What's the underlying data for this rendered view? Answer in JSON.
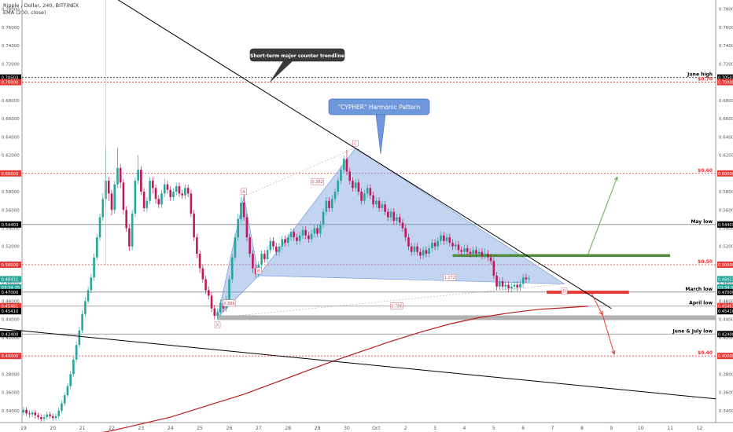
{
  "header": {
    "symbol_line": "Ripple / Dollar, 240, BITFINEX",
    "indicator_line": "EMA (200, close)"
  },
  "colors": {
    "up": "#26a69a",
    "down": "#c2185b",
    "ema": "#b71c1c",
    "pattern_fill": "#7b9fe0",
    "level_red": "#e53935",
    "level_grey": "#888888",
    "support_green": "#4e8c3a",
    "trend": "#000000",
    "callout_dark": "#3a3a3a",
    "callout_blue": "#6f97dc"
  },
  "chart_data": {
    "type": "candlestick",
    "title": "Ripple / Dollar, 240, BITFINEX",
    "xlabel": "",
    "ylabel": "",
    "ylim": [
      0.327,
      0.79
    ],
    "grid": false,
    "x_ticks": [
      {
        "i": 0,
        "label": "19"
      },
      {
        "i": 10,
        "label": "20"
      },
      {
        "i": 20,
        "label": "21"
      },
      {
        "i": 30,
        "label": "22"
      },
      {
        "i": 40,
        "label": "23"
      },
      {
        "i": 50,
        "label": "24"
      },
      {
        "i": 60,
        "label": "25"
      },
      {
        "i": 70,
        "label": "26"
      },
      {
        "i": 80,
        "label": "27"
      },
      {
        "i": 90,
        "label": "28"
      },
      {
        "i": 100,
        "label": "29"
      },
      {
        "i": 110,
        "label": "30"
      },
      {
        "i": 120,
        "label": "Oct"
      },
      {
        "i": 130,
        "label": "2"
      },
      {
        "i": 140,
        "label": "3"
      },
      {
        "i": 150,
        "label": "4"
      },
      {
        "i": 160,
        "label": "5"
      },
      {
        "i": 170,
        "label": "6"
      },
      {
        "i": 180,
        "label": "7"
      },
      {
        "i": 190,
        "label": "8"
      },
      {
        "i": 200,
        "label": "9"
      },
      {
        "i": 210,
        "label": "10"
      },
      {
        "i": 220,
        "label": "11"
      },
      {
        "i": 230,
        "label": "12"
      }
    ],
    "y_ticks": [
      "0.34000",
      "0.36000",
      "0.38000",
      "0.40000",
      "0.42000",
      "0.44000",
      "0.46000",
      "0.48000",
      "0.50000",
      "0.52000",
      "0.54000",
      "0.56000",
      "0.58000",
      "0.60000",
      "0.62000",
      "0.64000",
      "0.66000",
      "0.68000",
      "0.70000",
      "0.72000",
      "0.74000",
      "0.76000",
      "0.78000"
    ],
    "price_badges": [
      {
        "value": 0.70503,
        "label": "0.70503",
        "color": "#000000"
      },
      {
        "value": 0.7,
        "label": "0.70000",
        "color": "#e53935"
      },
      {
        "value": 0.6,
        "label": "0.60000",
        "color": "#e53935"
      },
      {
        "value": 0.54403,
        "label": "0.54403",
        "color": "#000000"
      },
      {
        "value": 0.5,
        "label": "0.50000",
        "color": "#e53935"
      },
      {
        "value": 0.48411,
        "label": "0.48411",
        "color": "#26a69a"
      },
      {
        "value": 0.475,
        "label": "03:34:35",
        "color": "#26a69a"
      },
      {
        "value": 0.47,
        "label": "0.47000",
        "color": "#000000"
      },
      {
        "value": 0.45461,
        "label": "0.45461",
        "color": "#e53935"
      },
      {
        "value": 0.449,
        "label": "0.45410",
        "color": "#000000"
      },
      {
        "value": 0.424,
        "label": "0.42400",
        "color": "#000000"
      },
      {
        "value": 0.4,
        "label": "0.40000",
        "color": "#e53935"
      }
    ],
    "levels": [
      {
        "value": 0.70503,
        "label": "June high",
        "color": "#000000",
        "dash": "2,2"
      },
      {
        "value": 0.7,
        "label": "$0.70",
        "color": "#e53935",
        "dash": "2,2"
      },
      {
        "value": 0.6,
        "label": "$0.60",
        "color": "#e53935",
        "dash": "2,2"
      },
      {
        "value": 0.54403,
        "label": "May low",
        "color": "#888888",
        "dash": ""
      },
      {
        "value": 0.5,
        "label": "$0.50",
        "color": "#e53935",
        "dash": "2,2"
      },
      {
        "value": 0.47,
        "label": "March low",
        "color": "#888888",
        "dash": ""
      },
      {
        "value": 0.45461,
        "label": "April low",
        "color": "#888888",
        "dash": ""
      },
      {
        "value": 0.424,
        "label": "June & July low",
        "color": "#888888",
        "dash": ""
      },
      {
        "value": 0.4,
        "label": "$0.40",
        "color": "#e53935",
        "dash": "2,2"
      }
    ],
    "annotations": {
      "trendline_callout": "Short-term major counter trendline",
      "pattern_callout": "\"CYPHER\" Harmonic Pattern",
      "points": [
        {
          "label": "X",
          "i": 66,
          "v": 0.442
        },
        {
          "label": "A",
          "i": 75,
          "v": 0.575
        },
        {
          "label": "B",
          "i": 80,
          "v": 0.488
        },
        {
          "label": "C",
          "i": 113,
          "v": 0.628
        },
        {
          "label": "D",
          "i": 184,
          "v": 0.479
        }
      ],
      "ratios": [
        {
          "label": "0.382",
          "i": 100,
          "v": 0.591
        },
        {
          "label": "0.886",
          "i": 70,
          "v": 0.458
        },
        {
          "label": "0.786",
          "i": 127,
          "v": 0.455
        },
        {
          "label": "1.272",
          "i": 145,
          "v": 0.486
        }
      ]
    },
    "candles": [
      [
        0.338,
        0.341,
        0.335,
        0.344
      ],
      [
        0.341,
        0.337,
        0.334,
        0.344
      ],
      [
        0.337,
        0.336,
        0.332,
        0.34
      ],
      [
        0.336,
        0.338,
        0.333,
        0.341
      ],
      [
        0.338,
        0.335,
        0.331,
        0.341
      ],
      [
        0.335,
        0.333,
        0.33,
        0.338
      ],
      [
        0.333,
        0.331,
        0.328,
        0.336
      ],
      [
        0.331,
        0.333,
        0.328,
        0.336
      ],
      [
        0.333,
        0.336,
        0.33,
        0.339
      ],
      [
        0.336,
        0.334,
        0.331,
        0.339
      ],
      [
        0.334,
        0.332,
        0.329,
        0.337
      ],
      [
        0.332,
        0.334,
        0.329,
        0.337
      ],
      [
        0.334,
        0.34,
        0.331,
        0.343
      ],
      [
        0.34,
        0.348,
        0.337,
        0.351
      ],
      [
        0.348,
        0.357,
        0.345,
        0.36
      ],
      [
        0.357,
        0.367,
        0.354,
        0.37
      ],
      [
        0.367,
        0.38,
        0.364,
        0.383
      ],
      [
        0.38,
        0.396,
        0.377,
        0.399
      ],
      [
        0.396,
        0.412,
        0.393,
        0.416
      ],
      [
        0.412,
        0.428,
        0.409,
        0.432
      ],
      [
        0.428,
        0.446,
        0.425,
        0.45
      ],
      [
        0.446,
        0.46,
        0.443,
        0.464
      ],
      [
        0.46,
        0.472,
        0.457,
        0.476
      ],
      [
        0.472,
        0.486,
        0.469,
        0.49
      ],
      [
        0.486,
        0.508,
        0.483,
        0.512
      ],
      [
        0.508,
        0.53,
        0.505,
        0.534
      ],
      [
        0.53,
        0.552,
        0.526,
        0.556
      ],
      [
        0.552,
        0.572,
        0.548,
        0.578
      ],
      [
        0.572,
        0.592,
        0.566,
        0.628
      ],
      [
        0.592,
        0.578,
        0.57,
        0.596
      ],
      [
        0.578,
        0.56,
        0.554,
        0.582
      ],
      [
        0.56,
        0.588,
        0.556,
        0.592
      ],
      [
        0.588,
        0.606,
        0.584,
        0.628
      ],
      [
        0.606,
        0.59,
        0.584,
        0.61
      ],
      [
        0.59,
        0.56,
        0.555,
        0.594
      ],
      [
        0.56,
        0.54,
        0.536,
        0.564
      ],
      [
        0.54,
        0.52,
        0.515,
        0.544
      ],
      [
        0.52,
        0.556,
        0.516,
        0.56
      ],
      [
        0.556,
        0.592,
        0.552,
        0.596
      ],
      [
        0.592,
        0.604,
        0.588,
        0.62
      ],
      [
        0.604,
        0.58,
        0.576,
        0.608
      ],
      [
        0.58,
        0.562,
        0.558,
        0.584
      ],
      [
        0.562,
        0.57,
        0.558,
        0.574
      ],
      [
        0.57,
        0.592,
        0.566,
        0.596
      ],
      [
        0.592,
        0.584,
        0.578,
        0.596
      ],
      [
        0.584,
        0.572,
        0.567,
        0.588
      ],
      [
        0.572,
        0.566,
        0.562,
        0.576
      ],
      [
        0.566,
        0.578,
        0.562,
        0.582
      ],
      [
        0.578,
        0.588,
        0.574,
        0.594
      ],
      [
        0.588,
        0.582,
        0.578,
        0.592
      ],
      [
        0.582,
        0.574,
        0.57,
        0.586
      ],
      [
        0.574,
        0.58,
        0.57,
        0.584
      ],
      [
        0.58,
        0.586,
        0.576,
        0.59
      ],
      [
        0.586,
        0.578,
        0.574,
        0.59
      ],
      [
        0.578,
        0.576,
        0.572,
        0.582
      ],
      [
        0.576,
        0.584,
        0.572,
        0.588
      ],
      [
        0.584,
        0.578,
        0.574,
        0.588
      ],
      [
        0.578,
        0.556,
        0.552,
        0.582
      ],
      [
        0.556,
        0.53,
        0.526,
        0.56
      ],
      [
        0.53,
        0.512,
        0.507,
        0.534
      ],
      [
        0.512,
        0.496,
        0.491,
        0.516
      ],
      [
        0.496,
        0.484,
        0.48,
        0.5
      ],
      [
        0.484,
        0.472,
        0.468,
        0.488
      ],
      [
        0.472,
        0.466,
        0.462,
        0.476
      ],
      [
        0.466,
        0.452,
        0.448,
        0.47
      ],
      [
        0.452,
        0.444,
        0.44,
        0.456
      ],
      [
        0.444,
        0.448,
        0.44,
        0.452
      ],
      [
        0.448,
        0.458,
        0.444,
        0.462
      ],
      [
        0.458,
        0.452,
        0.448,
        0.462
      ],
      [
        0.452,
        0.462,
        0.448,
        0.466
      ],
      [
        0.462,
        0.484,
        0.458,
        0.488
      ],
      [
        0.484,
        0.508,
        0.48,
        0.512
      ],
      [
        0.508,
        0.53,
        0.504,
        0.534
      ],
      [
        0.53,
        0.55,
        0.526,
        0.556
      ],
      [
        0.55,
        0.568,
        0.546,
        0.574
      ],
      [
        0.568,
        0.552,
        0.548,
        0.578
      ],
      [
        0.552,
        0.53,
        0.526,
        0.556
      ],
      [
        0.53,
        0.512,
        0.508,
        0.534
      ],
      [
        0.512,
        0.496,
        0.491,
        0.516
      ],
      [
        0.496,
        0.49,
        0.486,
        0.5
      ],
      [
        0.49,
        0.5,
        0.486,
        0.504
      ],
      [
        0.5,
        0.512,
        0.496,
        0.516
      ],
      [
        0.512,
        0.506,
        0.502,
        0.516
      ],
      [
        0.506,
        0.516,
        0.502,
        0.52
      ],
      [
        0.516,
        0.526,
        0.512,
        0.53
      ],
      [
        0.526,
        0.52,
        0.516,
        0.53
      ],
      [
        0.52,
        0.514,
        0.51,
        0.524
      ],
      [
        0.514,
        0.52,
        0.51,
        0.524
      ],
      [
        0.52,
        0.528,
        0.516,
        0.532
      ],
      [
        0.528,
        0.524,
        0.52,
        0.532
      ],
      [
        0.524,
        0.53,
        0.52,
        0.534
      ],
      [
        0.53,
        0.536,
        0.526,
        0.54
      ],
      [
        0.536,
        0.53,
        0.526,
        0.54
      ],
      [
        0.53,
        0.526,
        0.522,
        0.534
      ],
      [
        0.526,
        0.532,
        0.522,
        0.536
      ],
      [
        0.532,
        0.538,
        0.528,
        0.542
      ],
      [
        0.538,
        0.532,
        0.528,
        0.542
      ],
      [
        0.532,
        0.528,
        0.524,
        0.536
      ],
      [
        0.528,
        0.534,
        0.524,
        0.538
      ],
      [
        0.534,
        0.54,
        0.53,
        0.544
      ],
      [
        0.54,
        0.534,
        0.53,
        0.544
      ],
      [
        0.534,
        0.544,
        0.53,
        0.548
      ],
      [
        0.544,
        0.558,
        0.54,
        0.562
      ],
      [
        0.558,
        0.57,
        0.554,
        0.574
      ],
      [
        0.57,
        0.562,
        0.558,
        0.574
      ],
      [
        0.562,
        0.572,
        0.558,
        0.576
      ],
      [
        0.572,
        0.58,
        0.568,
        0.584
      ],
      [
        0.58,
        0.592,
        0.576,
        0.596
      ],
      [
        0.592,
        0.604,
        0.588,
        0.608
      ],
      [
        0.604,
        0.616,
        0.6,
        0.62
      ],
      [
        0.616,
        0.602,
        0.598,
        0.626
      ],
      [
        0.602,
        0.592,
        0.588,
        0.606
      ],
      [
        0.592,
        0.584,
        0.58,
        0.596
      ],
      [
        0.584,
        0.59,
        0.58,
        0.594
      ],
      [
        0.59,
        0.58,
        0.576,
        0.594
      ],
      [
        0.58,
        0.57,
        0.566,
        0.584
      ],
      [
        0.57,
        0.578,
        0.566,
        0.582
      ],
      [
        0.578,
        0.584,
        0.574,
        0.588
      ],
      [
        0.584,
        0.576,
        0.572,
        0.588
      ],
      [
        0.576,
        0.566,
        0.562,
        0.58
      ],
      [
        0.566,
        0.57,
        0.562,
        0.574
      ],
      [
        0.57,
        0.562,
        0.558,
        0.574
      ],
      [
        0.562,
        0.566,
        0.558,
        0.57
      ],
      [
        0.566,
        0.558,
        0.554,
        0.57
      ],
      [
        0.558,
        0.552,
        0.548,
        0.562
      ],
      [
        0.552,
        0.558,
        0.548,
        0.562
      ],
      [
        0.558,
        0.548,
        0.544,
        0.562
      ],
      [
        0.548,
        0.552,
        0.544,
        0.556
      ],
      [
        0.552,
        0.546,
        0.542,
        0.556
      ],
      [
        0.546,
        0.54,
        0.536,
        0.55
      ],
      [
        0.54,
        0.53,
        0.526,
        0.544
      ],
      [
        0.53,
        0.52,
        0.516,
        0.534
      ],
      [
        0.52,
        0.514,
        0.51,
        0.524
      ],
      [
        0.514,
        0.52,
        0.51,
        0.524
      ],
      [
        0.52,
        0.514,
        0.51,
        0.524
      ],
      [
        0.514,
        0.51,
        0.506,
        0.518
      ],
      [
        0.51,
        0.516,
        0.506,
        0.52
      ],
      [
        0.516,
        0.512,
        0.508,
        0.52
      ],
      [
        0.512,
        0.518,
        0.508,
        0.522
      ],
      [
        0.518,
        0.524,
        0.514,
        0.528
      ],
      [
        0.524,
        0.52,
        0.516,
        0.528
      ],
      [
        0.52,
        0.526,
        0.516,
        0.53
      ],
      [
        0.526,
        0.532,
        0.522,
        0.536
      ],
      [
        0.532,
        0.526,
        0.522,
        0.536
      ],
      [
        0.526,
        0.53,
        0.522,
        0.534
      ],
      [
        0.53,
        0.524,
        0.52,
        0.534
      ],
      [
        0.524,
        0.52,
        0.516,
        0.528
      ],
      [
        0.52,
        0.522,
        0.516,
        0.526
      ],
      [
        0.522,
        0.516,
        0.512,
        0.526
      ],
      [
        0.516,
        0.514,
        0.51,
        0.52
      ],
      [
        0.514,
        0.518,
        0.51,
        0.522
      ],
      [
        0.518,
        0.514,
        0.51,
        0.522
      ],
      [
        0.514,
        0.512,
        0.508,
        0.518
      ],
      [
        0.512,
        0.516,
        0.508,
        0.52
      ],
      [
        0.516,
        0.512,
        0.508,
        0.52
      ],
      [
        0.512,
        0.514,
        0.508,
        0.518
      ],
      [
        0.514,
        0.51,
        0.506,
        0.518
      ],
      [
        0.51,
        0.512,
        0.506,
        0.518
      ],
      [
        0.512,
        0.508,
        0.504,
        0.516
      ],
      [
        0.508,
        0.504,
        0.5,
        0.512
      ],
      [
        0.504,
        0.488,
        0.484,
        0.508
      ],
      [
        0.488,
        0.476,
        0.472,
        0.492
      ],
      [
        0.476,
        0.482,
        0.472,
        0.486
      ],
      [
        0.482,
        0.476,
        0.472,
        0.486
      ],
      [
        0.476,
        0.478,
        0.472,
        0.482
      ],
      [
        0.478,
        0.474,
        0.47,
        0.482
      ],
      [
        0.474,
        0.476,
        0.47,
        0.48
      ],
      [
        0.476,
        0.478,
        0.472,
        0.482
      ],
      [
        0.478,
        0.475,
        0.471,
        0.482
      ],
      [
        0.475,
        0.479,
        0.471,
        0.483
      ],
      [
        0.479,
        0.486,
        0.475,
        0.49
      ],
      [
        0.486,
        0.484,
        0.48,
        0.49
      ],
      [
        0.484,
        0.485,
        0.481,
        0.488
      ]
    ],
    "ema200": [
      {
        "i": 0,
        "v": 0.3
      },
      {
        "i": 30,
        "v": 0.318
      },
      {
        "i": 50,
        "v": 0.333
      },
      {
        "i": 65,
        "v": 0.348
      },
      {
        "i": 75,
        "v": 0.358
      },
      {
        "i": 85,
        "v": 0.37
      },
      {
        "i": 95,
        "v": 0.382
      },
      {
        "i": 105,
        "v": 0.394
      },
      {
        "i": 115,
        "v": 0.405
      },
      {
        "i": 125,
        "v": 0.416
      },
      {
        "i": 135,
        "v": 0.426
      },
      {
        "i": 145,
        "v": 0.435
      },
      {
        "i": 155,
        "v": 0.442
      },
      {
        "i": 165,
        "v": 0.447
      },
      {
        "i": 175,
        "v": 0.451
      },
      {
        "i": 185,
        "v": 0.453
      },
      {
        "i": 192,
        "v": 0.4545
      }
    ]
  }
}
